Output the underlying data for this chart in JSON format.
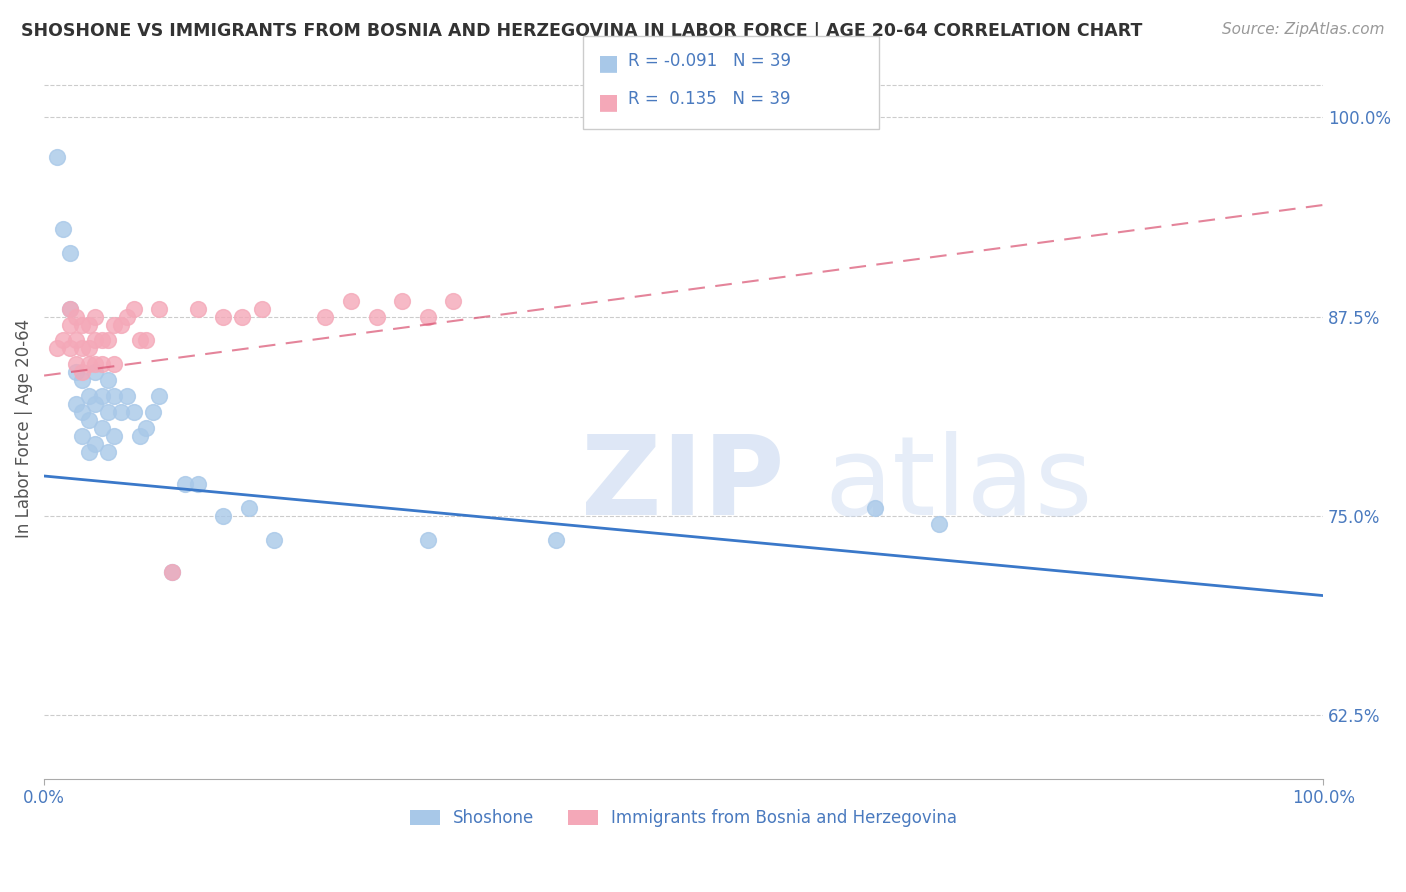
{
  "title": "SHOSHONE VS IMMIGRANTS FROM BOSNIA AND HERZEGOVINA IN LABOR FORCE | AGE 20-64 CORRELATION CHART",
  "source": "Source: ZipAtlas.com",
  "ylabel": "In Labor Force | Age 20-64",
  "legend_label_blue": "Shoshone",
  "legend_label_pink": "Immigrants from Bosnia and Herzegovina",
  "r_blue": -0.091,
  "n_blue": 39,
  "r_pink": 0.135,
  "n_pink": 39,
  "xlim": [
    0.0,
    1.0
  ],
  "ylim": [
    0.585,
    1.025
  ],
  "ytick_labels": [
    "62.5%",
    "75.0%",
    "87.5%",
    "100.0%"
  ],
  "ytick_values": [
    0.625,
    0.75,
    0.875,
    1.0
  ],
  "blue_color": "#a8c8e8",
  "pink_color": "#f4a8b8",
  "blue_line_color": "#3a78c9",
  "pink_line_color": "#d95070",
  "blue_scatter_x": [
    0.01,
    0.015,
    0.02,
    0.02,
    0.025,
    0.025,
    0.03,
    0.03,
    0.03,
    0.035,
    0.035,
    0.035,
    0.04,
    0.04,
    0.04,
    0.045,
    0.045,
    0.05,
    0.05,
    0.05,
    0.055,
    0.055,
    0.06,
    0.065,
    0.07,
    0.075,
    0.08,
    0.085,
    0.09,
    0.1,
    0.11,
    0.12,
    0.14,
    0.16,
    0.18,
    0.3,
    0.4,
    0.65,
    0.7
  ],
  "blue_scatter_y": [
    0.975,
    0.93,
    0.88,
    0.915,
    0.82,
    0.84,
    0.8,
    0.815,
    0.835,
    0.79,
    0.81,
    0.825,
    0.795,
    0.82,
    0.84,
    0.805,
    0.825,
    0.79,
    0.815,
    0.835,
    0.8,
    0.825,
    0.815,
    0.825,
    0.815,
    0.8,
    0.805,
    0.815,
    0.825,
    0.715,
    0.77,
    0.77,
    0.75,
    0.755,
    0.735,
    0.735,
    0.735,
    0.755,
    0.745
  ],
  "pink_scatter_x": [
    0.01,
    0.015,
    0.02,
    0.02,
    0.02,
    0.025,
    0.025,
    0.025,
    0.03,
    0.03,
    0.03,
    0.035,
    0.035,
    0.035,
    0.04,
    0.04,
    0.04,
    0.045,
    0.045,
    0.05,
    0.055,
    0.055,
    0.06,
    0.065,
    0.07,
    0.075,
    0.08,
    0.09,
    0.1,
    0.12,
    0.14,
    0.155,
    0.17,
    0.22,
    0.24,
    0.26,
    0.28,
    0.3,
    0.32
  ],
  "pink_scatter_y": [
    0.855,
    0.86,
    0.855,
    0.87,
    0.88,
    0.845,
    0.86,
    0.875,
    0.84,
    0.855,
    0.87,
    0.845,
    0.855,
    0.87,
    0.845,
    0.86,
    0.875,
    0.845,
    0.86,
    0.86,
    0.845,
    0.87,
    0.87,
    0.875,
    0.88,
    0.86,
    0.86,
    0.88,
    0.715,
    0.88,
    0.875,
    0.875,
    0.88,
    0.875,
    0.885,
    0.875,
    0.885,
    0.875,
    0.885
  ],
  "blue_line_x0": 0.0,
  "blue_line_y0": 0.775,
  "blue_line_x1": 1.0,
  "blue_line_y1": 0.7,
  "pink_line_x0": 0.0,
  "pink_line_y0": 0.838,
  "pink_line_x1": 1.0,
  "pink_line_y1": 0.945
}
